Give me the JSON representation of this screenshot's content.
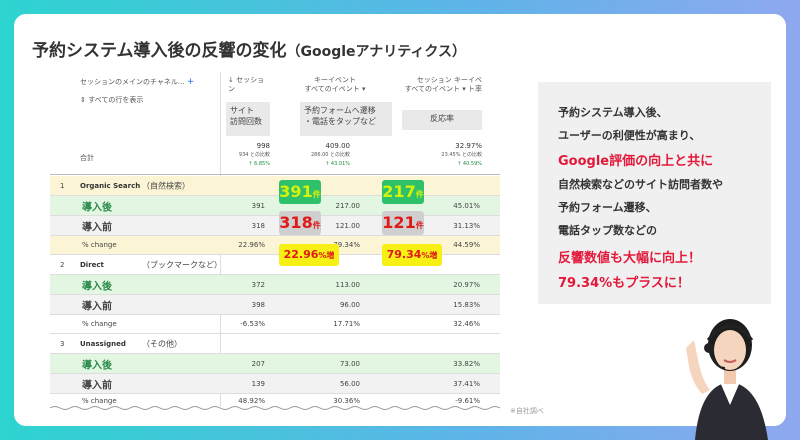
{
  "title": {
    "main": "予約システム導入後の反響の変化",
    "sub": "（Googleアナリティクス）"
  },
  "table": {
    "dim_header": "セッションのメインのチャネル...",
    "dim_plus": "+",
    "show_all": "すべての行を表示",
    "col1_header": "↓ セッショ ン",
    "col1_box": [
      "サイト",
      "訪問回数"
    ],
    "col2_header": [
      "キーイベント",
      "すべてのイベント ▾"
    ],
    "col2_box": [
      "予約フォームへ遷移",
      "・電話をタップなど"
    ],
    "col3_header": [
      "セッション キーイベ",
      "すべてのイベント ▾ ト率"
    ],
    "col3_box": "反応率",
    "total_label": "合計",
    "totals": [
      {
        "v": "998",
        "c": "934 との比較",
        "p": "↑ 6.85%"
      },
      {
        "v": "409.00",
        "c": "286.00 との比較",
        "p": "↑ 43.01%"
      },
      {
        "v": "32.97%",
        "c": "23.45% との比較",
        "p": "↑ 40.59%"
      }
    ],
    "groups": [
      {
        "num": "1",
        "name": "Organic Search",
        "jp": "（自然検索）",
        "after": [
          "391",
          "217.00",
          "45.01%"
        ],
        "before": [
          "318",
          "121.00",
          "31.13%"
        ],
        "change": [
          "22.96%",
          "79.34%",
          "44.59%"
        ]
      },
      {
        "num": "2",
        "name": "Direct",
        "jp": "（ブックマークなど）",
        "after": [
          "372",
          "113.00",
          "20.97%"
        ],
        "before": [
          "398",
          "96.00",
          "15.83%"
        ],
        "change": [
          "-6.53%",
          "17.71%",
          "32.46%"
        ]
      },
      {
        "num": "3",
        "name": "Unassigned",
        "jp": "（その他）",
        "after": [
          "207",
          "73.00",
          "33.82%"
        ],
        "before": [
          "139",
          "56.00",
          "37.41%"
        ],
        "change": [
          "48.92%",
          "30.36%",
          "-9.61%"
        ]
      }
    ],
    "after_label": "導入後",
    "before_label": "導入前",
    "change_label": "% change"
  },
  "badges": {
    "b1": "391",
    "b2": "217",
    "b3": "318",
    "b4": "121",
    "ken": "件",
    "c1": "22.96",
    "c2": "79.34",
    "pct_zou": "%増"
  },
  "note": "※自社調べ",
  "panel": {
    "l1": "予約システム導入後、",
    "l2": "ユーザーの利便性が高まり、",
    "l3": "Google評価の向上と共に",
    "l4": "自然検索などのサイト訪問者数や",
    "l5": "予約フォーム遷移、",
    "l6": "電話タップ数などの",
    "l7": "反響数値も大幅に向上！",
    "l8": "79.34%もプラスに！"
  },
  "colors": {
    "accent": "#e3183a",
    "green": "#2fc06a",
    "yellow": "#f7f014"
  }
}
